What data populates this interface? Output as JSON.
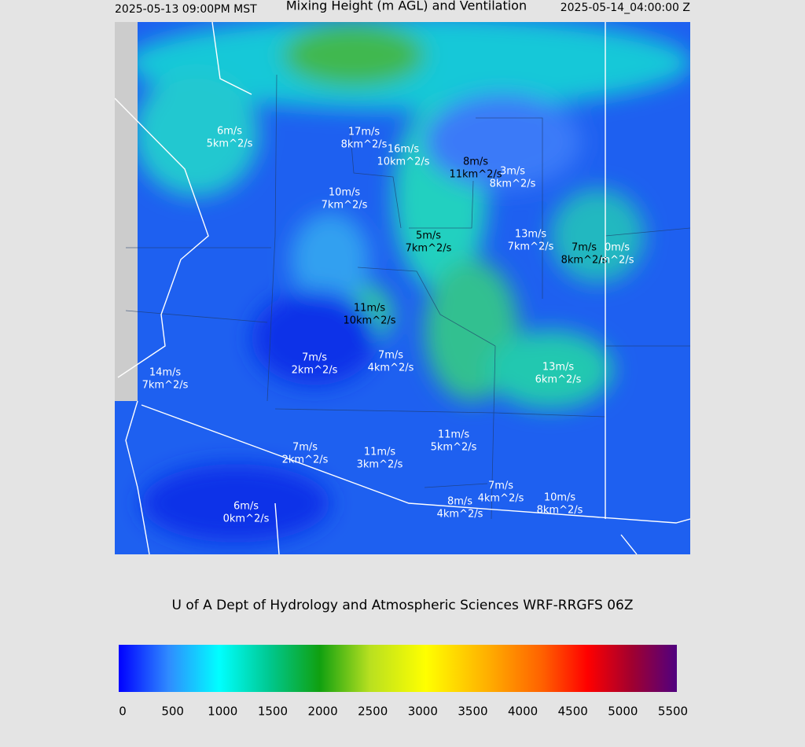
{
  "header": {
    "valid_local": "2025-05-13 09:00PM MST",
    "title": "Mixing Height (m AGL) and Ventilation",
    "valid_utc": "2025-05-14_04:00:00 Z"
  },
  "map": {
    "labels": [
      {
        "wind": "6m/s",
        "vent": "5km^2/s"
      },
      {
        "wind": "17m/s",
        "vent": "8km^2/s"
      },
      {
        "wind": "16m/s",
        "vent": "10km^2/s"
      },
      {
        "wind": "8m/s",
        "vent": "11km^2/s"
      },
      {
        "wind": "3m/s",
        "vent": "8km^2/s"
      },
      {
        "wind": "10m/s",
        "vent": "7km^2/s"
      },
      {
        "wind": "5m/s",
        "vent": "7km^2/s"
      },
      {
        "wind": "13m/s",
        "vent": "7km^2/s"
      },
      {
        "wind": "7m/s",
        "vent": "8km^2/s"
      },
      {
        "wind": "0m/s",
        "vent": "m^2/s"
      },
      {
        "wind": "11m/s",
        "vent": "10km^2/s"
      },
      {
        "wind": "7m/s",
        "vent": "2km^2/s"
      },
      {
        "wind": "7m/s",
        "vent": "4km^2/s"
      },
      {
        "wind": "14m/s",
        "vent": "7km^2/s"
      },
      {
        "wind": "13m/s",
        "vent": "6km^2/s"
      },
      {
        "wind": "11m/s",
        "vent": "5km^2/s"
      },
      {
        "wind": "7m/s",
        "vent": "2km^2/s"
      },
      {
        "wind": "11m/s",
        "vent": "3km^2/s"
      },
      {
        "wind": "7m/s",
        "vent": "4km^2/s"
      },
      {
        "wind": "8m/s",
        "vent": "4km^2/s"
      },
      {
        "wind": "10m/s",
        "vent": "8km^2/s"
      },
      {
        "wind": "6m/s",
        "vent": "0km^2/s"
      }
    ]
  },
  "footer": {
    "credit": "U of A Dept of Hydrology and Atmospheric Sciences WRF-RRGFS 06Z"
  },
  "colorbar": {
    "lim": [
      0,
      5500
    ],
    "ticks": [
      0,
      500,
      1000,
      1500,
      2000,
      2500,
      3000,
      3500,
      4000,
      4500,
      5000,
      5500
    ]
  }
}
